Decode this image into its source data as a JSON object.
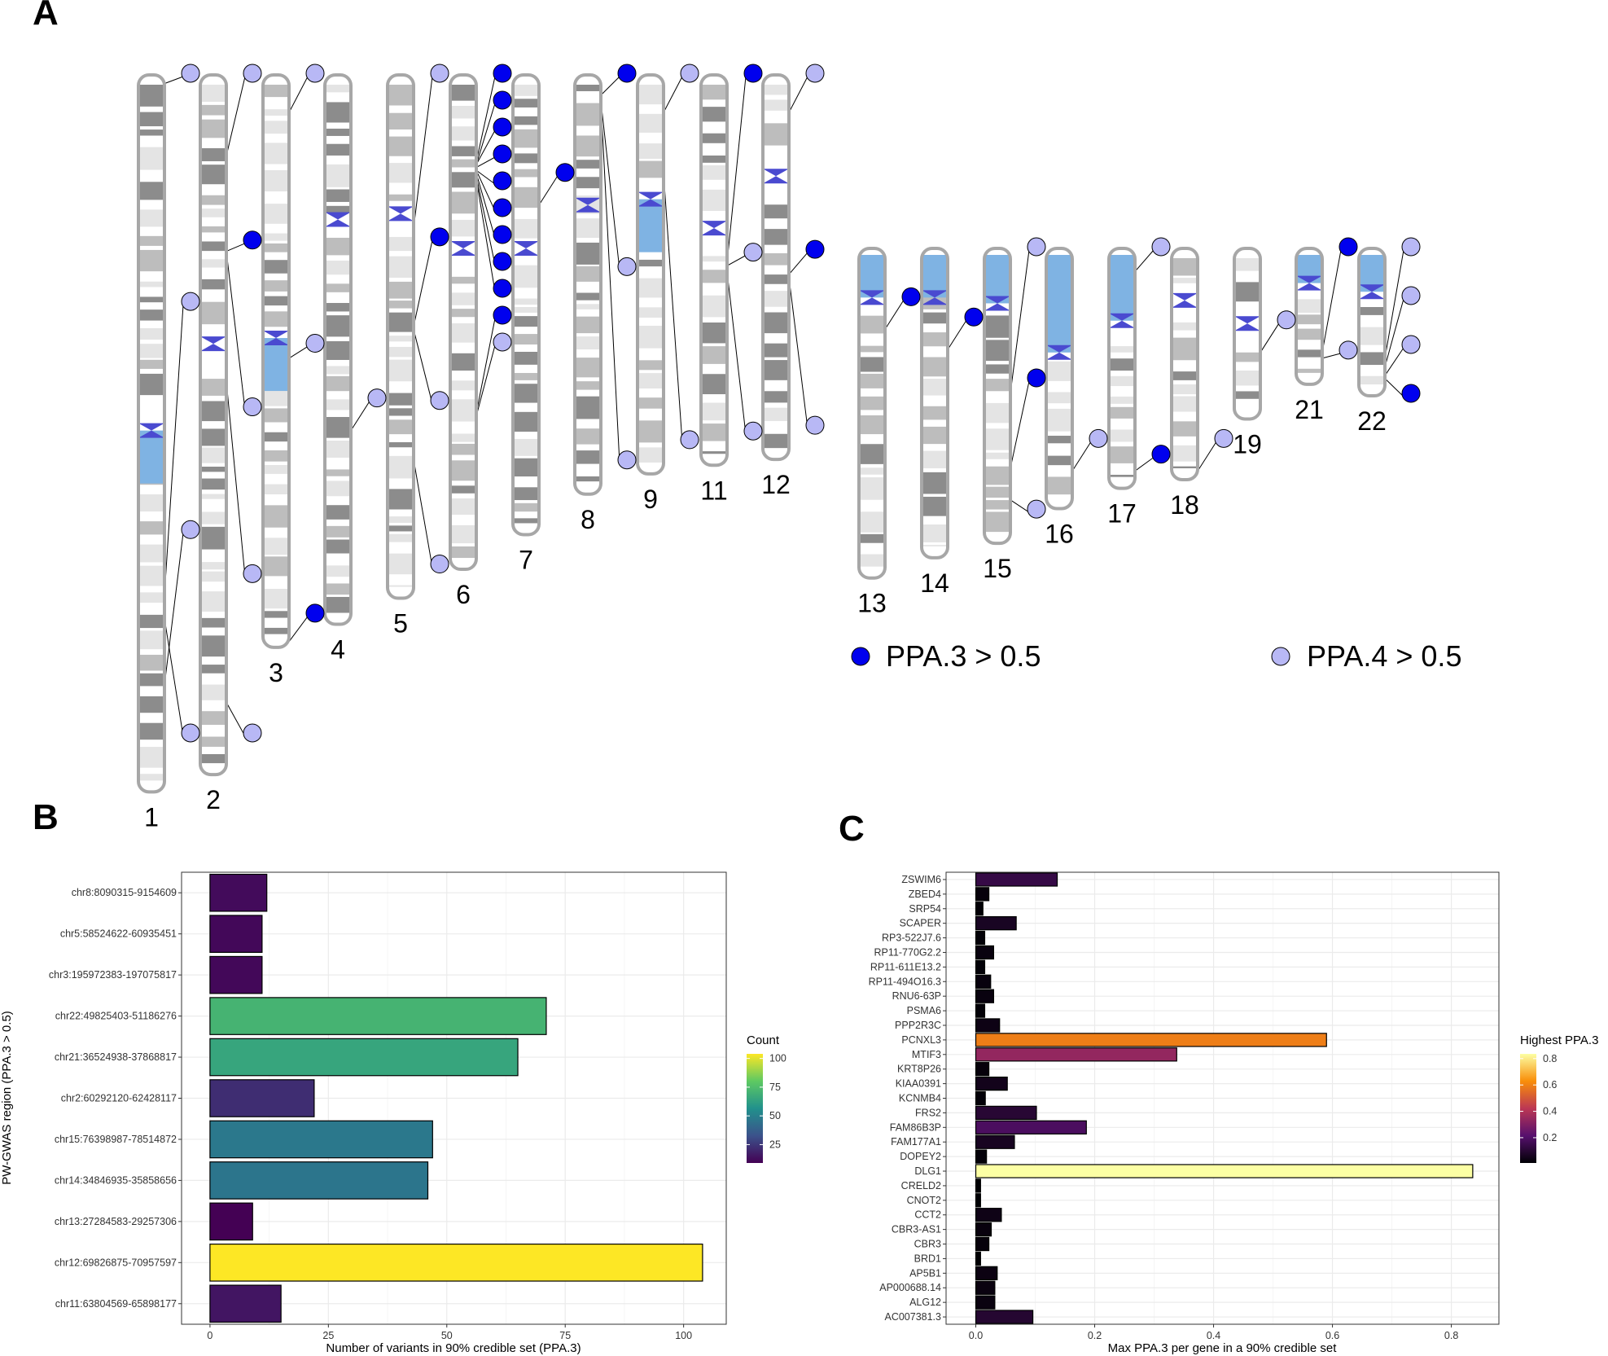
{
  "panels": {
    "a": "A",
    "b": "B",
    "c": "C"
  },
  "colors": {
    "ppa3": "#0000ee",
    "ppa4": "#b8b8f5",
    "band_dark": "#8c8c8c",
    "band_mid": "#bdbdbd",
    "band_light": "#e4e4e4",
    "stalk": "#7fb3e3",
    "centromere": "#4a4ad0",
    "outline": "#a7a7a7",
    "grid": "#ebebeb"
  },
  "chart_data": [
    {
      "type": "ideogram",
      "legend": [
        {
          "key": "ppa3",
          "label": "PPA.3 > 0.5",
          "color": "#0000ee"
        },
        {
          "key": "ppa4",
          "label": "PPA.4 > 0.5",
          "color": "#b8b8f5"
        }
      ],
      "chromosomes": [
        {
          "name": "1",
          "length": 248,
          "centromere": 123,
          "marks": [
            {
              "pos": 3,
              "type": "ppa4"
            },
            {
              "pos": 180,
              "type": "ppa4"
            },
            {
              "pos": 211,
              "type": "ppa4"
            },
            {
              "pos": 188,
              "type": "ppa4"
            }
          ]
        },
        {
          "name": "2",
          "length": 242,
          "centromere": 93,
          "marks": [
            {
              "pos": 28,
              "type": "ppa4"
            },
            {
              "pos": 61,
              "type": "ppa3"
            },
            {
              "pos": 61,
              "type": "ppa4"
            },
            {
              "pos": 106,
              "type": "ppa4"
            },
            {
              "pos": 217,
              "type": "ppa4"
            }
          ]
        },
        {
          "name": "3",
          "length": 198,
          "centromere": 91,
          "marks": [
            {
              "pos": 13,
              "type": "ppa4"
            },
            {
              "pos": 98,
              "type": "ppa4"
            },
            {
              "pos": 196,
              "type": "ppa3"
            }
          ]
        },
        {
          "name": "4",
          "length": 190,
          "centromere": 50,
          "marks": [
            {
              "pos": 123,
              "type": "ppa4"
            }
          ]
        },
        {
          "name": "5",
          "length": 181,
          "centromere": 48,
          "marks": [
            {
              "pos": 53,
              "type": "ppa4"
            },
            {
              "pos": 87,
              "type": "ppa3"
            },
            {
              "pos": 88,
              "type": "ppa4"
            },
            {
              "pos": 133,
              "type": "ppa4"
            }
          ]
        },
        {
          "name": "6",
          "length": 171,
          "centromere": 60,
          "marks": [
            {
              "pos": 30,
              "type": "ppa3"
            },
            {
              "pos": 31,
              "type": "ppa3"
            },
            {
              "pos": 31,
              "type": "ppa3"
            },
            {
              "pos": 32,
              "type": "ppa3"
            },
            {
              "pos": 33,
              "type": "ppa3"
            },
            {
              "pos": 33,
              "type": "ppa3"
            },
            {
              "pos": 34,
              "type": "ppa3"
            },
            {
              "pos": 35,
              "type": "ppa3"
            },
            {
              "pos": 36,
              "type": "ppa3"
            },
            {
              "pos": 117,
              "type": "ppa3"
            },
            {
              "pos": 118,
              "type": "ppa4"
            }
          ]
        },
        {
          "name": "7",
          "length": 159,
          "centromere": 60,
          "marks": [
            {
              "pos": 45,
              "type": "ppa3"
            }
          ]
        },
        {
          "name": "8",
          "length": 145,
          "centromere": 45,
          "marks": [
            {
              "pos": 7,
              "type": "ppa3"
            },
            {
              "pos": 9,
              "type": "ppa4"
            },
            {
              "pos": 9,
              "type": "ppa4"
            }
          ]
        },
        {
          "name": "9",
          "length": 138,
          "centromere": 43,
          "marks": [
            {
              "pos": 13,
              "type": "ppa4"
            },
            {
              "pos": 34,
              "type": "ppa4"
            }
          ]
        },
        {
          "name": "11",
          "length": 135,
          "centromere": 53,
          "marks": [
            {
              "pos": 65,
              "type": "ppa3"
            },
            {
              "pos": 66,
              "type": "ppa4"
            },
            {
              "pos": 68,
              "type": "ppa4"
            }
          ]
        },
        {
          "name": "12",
          "length": 133,
          "centromere": 35,
          "marks": [
            {
              "pos": 13,
              "type": "ppa4"
            },
            {
              "pos": 69,
              "type": "ppa3"
            },
            {
              "pos": 70,
              "type": "ppa4"
            }
          ]
        },
        {
          "name": "13",
          "length": 114,
          "centromere": 17,
          "marks": [
            {
              "pos": 28,
              "type": "ppa3"
            }
          ]
        },
        {
          "name": "14",
          "length": 107,
          "centromere": 17,
          "marks": [
            {
              "pos": 35,
              "type": "ppa3"
            }
          ]
        },
        {
          "name": "15",
          "length": 102,
          "centromere": 19,
          "marks": [
            {
              "pos": 50,
              "type": "ppa4"
            },
            {
              "pos": 76,
              "type": "ppa3"
            },
            {
              "pos": 87,
              "type": "ppa4"
            }
          ]
        },
        {
          "name": "16",
          "length": 90,
          "centromere": 36,
          "marks": [
            {
              "pos": 77,
              "type": "ppa4"
            }
          ]
        },
        {
          "name": "17",
          "length": 83,
          "centromere": 25,
          "marks": [
            {
              "pos": 8,
              "type": "ppa4"
            },
            {
              "pos": 77,
              "type": "ppa3"
            }
          ]
        },
        {
          "name": "18",
          "length": 80,
          "centromere": 18,
          "marks": [
            {
              "pos": 77,
              "type": "ppa4"
            }
          ]
        },
        {
          "name": "19",
          "length": 59,
          "centromere": 26,
          "marks": [
            {
              "pos": 36,
              "type": "ppa4"
            }
          ]
        },
        {
          "name": "21",
          "length": 47,
          "centromere": 12,
          "marks": [
            {
              "pos": 36,
              "type": "ppa3"
            },
            {
              "pos": 38,
              "type": "ppa4"
            }
          ]
        },
        {
          "name": "22",
          "length": 51,
          "centromere": 15,
          "marks": [
            {
              "pos": 38,
              "type": "ppa4"
            },
            {
              "pos": 41,
              "type": "ppa4"
            },
            {
              "pos": 44,
              "type": "ppa4"
            },
            {
              "pos": 45,
              "type": "ppa3"
            }
          ]
        }
      ]
    },
    {
      "type": "bar",
      "orientation": "horizontal",
      "categories": [
        "chr8:8090315-9154609",
        "chr5:58524622-60935451",
        "chr3:195972383-197075817",
        "chr22:49825403-51186276",
        "chr21:36524938-37868817",
        "chr2:60292120-62428117",
        "chr15:76398987-78514872",
        "chr14:34846935-35858656",
        "chr13:27284583-29257306",
        "chr12:69826875-70957597",
        "chr11:63804569-65898177"
      ],
      "values": [
        12,
        11,
        11,
        71,
        65,
        22,
        47,
        46,
        9,
        104,
        15
      ],
      "xlabel": "Number of variants in 90% credible set (PPA.3)",
      "ylabel": "PW-GWAS region (PPA.3 > 0.5)",
      "xlim": [
        -6,
        109
      ],
      "xticks": [
        0,
        25,
        50,
        75,
        100
      ],
      "colorscale": "viridis",
      "color_legend": {
        "title": "Count",
        "range": [
          9,
          104
        ],
        "ticks": [
          25,
          50,
          75,
          100
        ]
      }
    },
    {
      "type": "bar",
      "orientation": "horizontal",
      "categories": [
        "ZSWIM6",
        "ZBED4",
        "SRP54",
        "SCAPER",
        "RP3-522J7.6",
        "RP11-770G2.2",
        "RP11-611E13.2",
        "RP11-494O16.3",
        "RNU6-63P",
        "PSMA6",
        "PPP2R3C",
        "PCNXL3",
        "MTIF3",
        "KRT8P26",
        "KIAA0391",
        "KCNMB4",
        "FRS2",
        "FAM86B3P",
        "FAM177A1",
        "DOPEY2",
        "DLG1",
        "CRELD2",
        "CNOT2",
        "CCT2",
        "CBR3-AS1",
        "CBR3",
        "BRD1",
        "AP5B1",
        "AP000688.14",
        "ALG12",
        "AC007381.3"
      ],
      "values": [
        0.137,
        0.022,
        0.012,
        0.068,
        0.015,
        0.03,
        0.015,
        0.025,
        0.03,
        0.015,
        0.04,
        0.59,
        0.338,
        0.022,
        0.053,
        0.016,
        0.102,
        0.186,
        0.065,
        0.018,
        0.836,
        0.008,
        0.008,
        0.043,
        0.026,
        0.022,
        0.008,
        0.036,
        0.032,
        0.032,
        0.096
      ],
      "xlabel": "Max PPA.3 per gene in a 90% credible set",
      "ylabel": "",
      "xlim": [
        -0.05,
        0.88
      ],
      "xticks": [
        0.0,
        0.2,
        0.4,
        0.6,
        0.8
      ],
      "xtick_labels": [
        "0.0",
        "0.2",
        "0.4",
        "0.6",
        "0.8"
      ],
      "colorscale": "inferno",
      "color_legend": {
        "title": "Highest PPA.3",
        "range": [
          0.008,
          0.836
        ],
        "ticks": [
          0.2,
          0.4,
          0.6,
          0.8
        ]
      }
    }
  ]
}
